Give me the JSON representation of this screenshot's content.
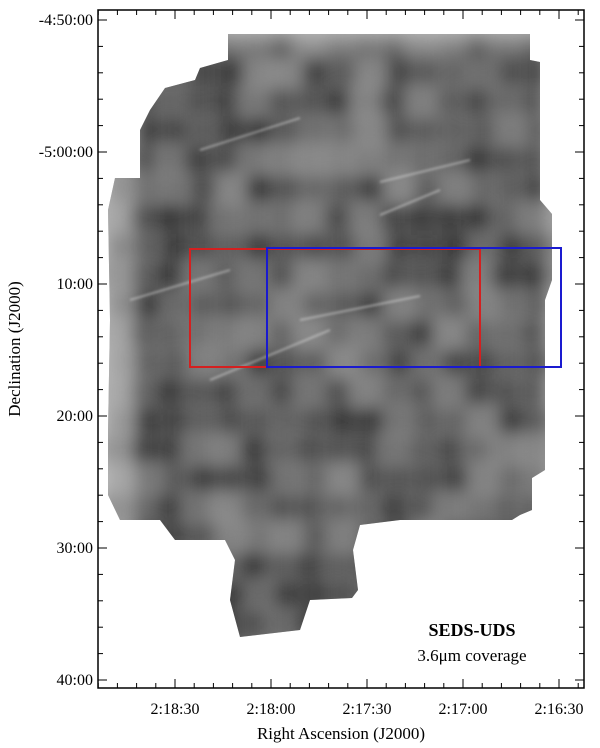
{
  "chart_data": {
    "type": "image",
    "xlabel": "Right Ascension (J2000)",
    "ylabel": "Declination (J2000)",
    "x_ticks": [
      "2:18:30",
      "2:18:00",
      "2:17:30",
      "2:17:00",
      "2:16:30"
    ],
    "y_ticks": [
      "-4:50:00",
      "-5:00:00",
      "10:00",
      "20:00",
      "30:00",
      "40:00"
    ],
    "annotation": {
      "title": "SEDS-UDS",
      "subtitle": "3.6μm coverage"
    },
    "regions": [
      {
        "name": "red rectangle",
        "color": "#d42020"
      },
      {
        "name": "blue rectangle",
        "color": "#1a1ad0"
      }
    ],
    "frame_color": "#000000",
    "image_colors": {
      "background": "#ffffff",
      "coverage_light": "#c4c4c4",
      "coverage_dark": "#262626"
    }
  }
}
